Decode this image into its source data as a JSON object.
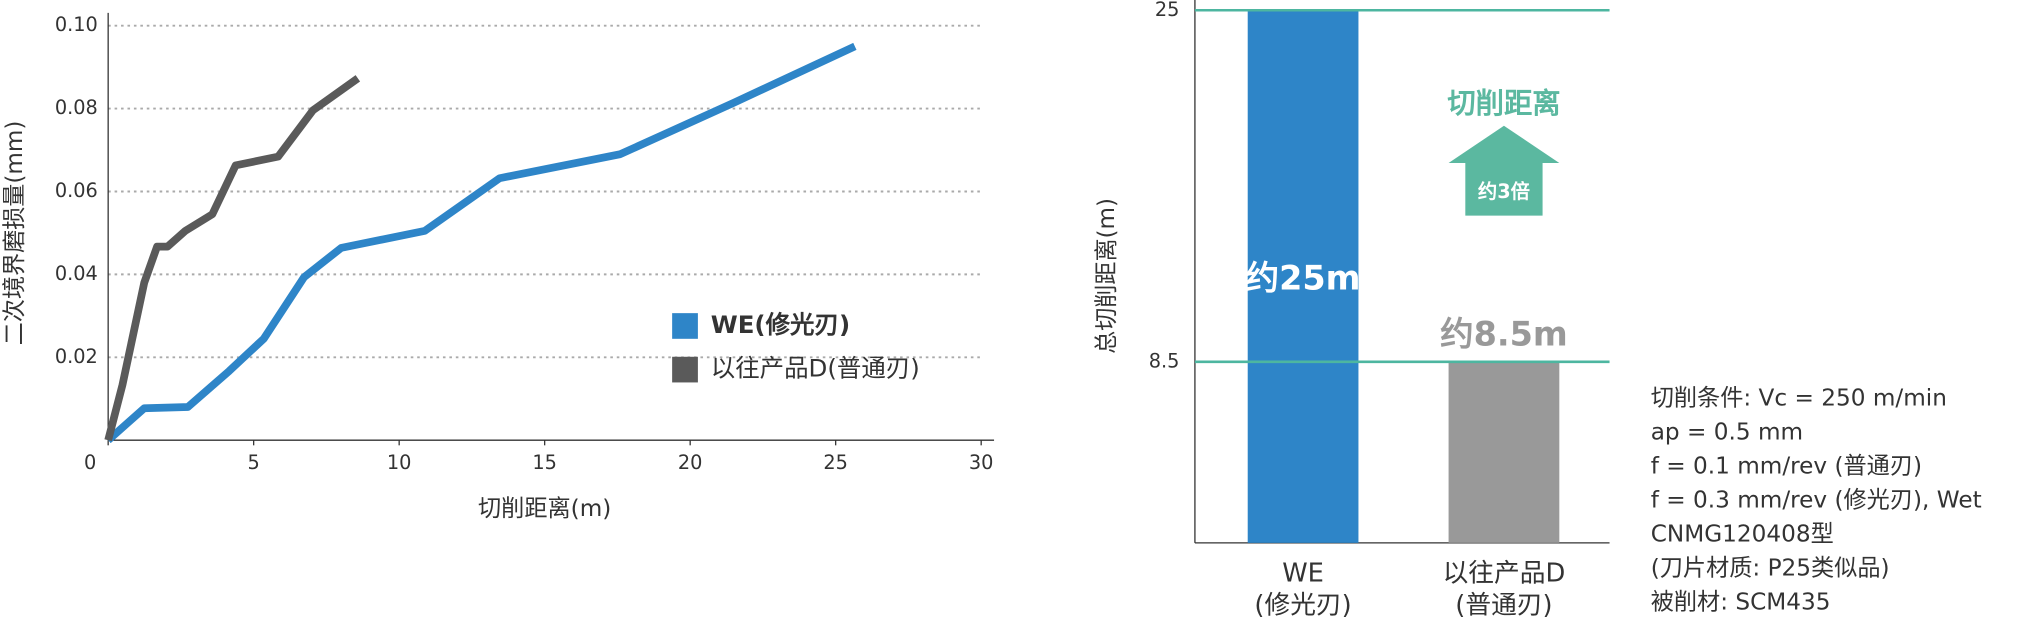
{
  "chart_data": [
    {
      "type": "line",
      "x_label": "切削距离(m)",
      "y_label": "二次境界磨损量(mm)",
      "xlim": [
        0,
        30
      ],
      "xticks": [
        0,
        5,
        10,
        15,
        20,
        25,
        30
      ],
      "ylim": [
        0,
        0.1
      ],
      "yticks": [
        0.02,
        0.04,
        0.06,
        0.08,
        {
          "value": 0.1,
          "label": "0.10"
        }
      ],
      "grid": true,
      "legend": "right",
      "series": [
        {
          "name": "WE(修光刃)",
          "color": "#2e85c8",
          "x": [
            0,
            1.24,
            2.74,
            4.16,
            5.35,
            6.73,
            8.01,
            10.88,
            13.45,
            17.6,
            21.5,
            25.66
          ],
          "values": [
            0,
            0.0077,
            0.008,
            0.0167,
            0.0245,
            0.0393,
            0.0464,
            0.0505,
            0.0632,
            0.069,
            0.0814,
            0.095
          ]
        },
        {
          "name": "以往产品D(普通刃)",
          "color": "#5a5a5a",
          "x": [
            0,
            0.49,
            1.24,
            1.68,
            2.04,
            2.65,
            3.58,
            4.38,
            5.84,
            7.04,
            8.58
          ],
          "values": [
            0,
            0.0133,
            0.038,
            0.0467,
            0.0467,
            0.0505,
            0.0545,
            0.0663,
            0.0684,
            0.0796,
            0.0873
          ]
        }
      ]
    },
    {
      "type": "bar",
      "y_label": "总切削距离(m)",
      "categories": [
        "WE\n(修光刃)",
        "以往产品D\n(普通刃)"
      ],
      "values": [
        25,
        8.5
      ],
      "value_labels": [
        "约25m",
        "约8.5m"
      ],
      "colors": [
        "#2e85c8",
        "#999999"
      ],
      "label_colors": [
        "#ffffff",
        "#999999"
      ],
      "ylim": [
        0,
        25
      ],
      "yticks": [
        8.5,
        25
      ],
      "grid": true,
      "grid_color": "#4db6a0",
      "annotation": {
        "title": "切削距离",
        "arrow_label": "约3倍",
        "color": "#5bb8a0"
      }
    }
  ],
  "notes": [
    "切削条件: Vc = 250 m/min",
    "ap = 0.5 mm",
    "f = 0.1 mm/rev (普通刃)",
    "f = 0.3 mm/rev (修光刃), Wet",
    "CNMG120408型",
    "(刀片材质: P25类似品)",
    "被削材: SCM435"
  ]
}
